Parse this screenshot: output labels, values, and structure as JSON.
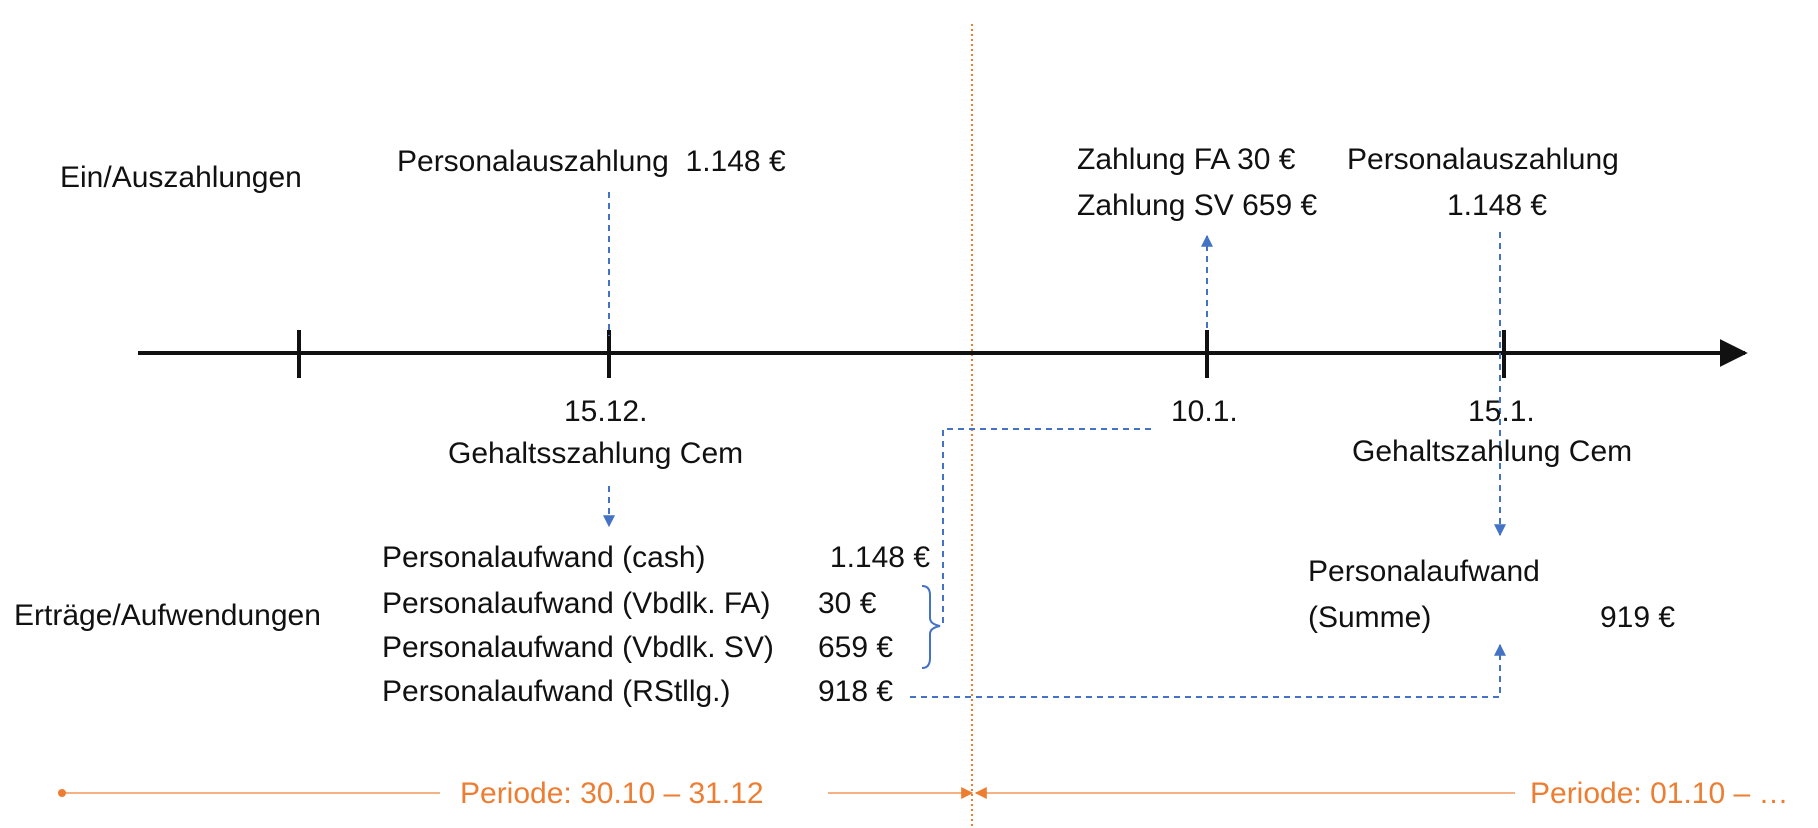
{
  "rows": {
    "top_label": "Ein/Auszahlungen",
    "bottom_label": "Erträge/Aufwendungen"
  },
  "top_events": {
    "payout_dec": "Personalauszahlung  1.148 €",
    "payment_fa": "Zahlung FA 30 €",
    "payment_sv": "Zahlung SV 659 €",
    "payout_jan_line1": "Personalauszahlung",
    "payout_jan_line2": "1.148 €"
  },
  "dates": {
    "d1": "15.12.",
    "d1_caption": "Gehaltsszahlung Cem",
    "d2": "10.1.",
    "d3": "15.1.",
    "d3_caption": "Gehaltszahlung Cem"
  },
  "expenses_dec": [
    {
      "label": "Personalaufwand (cash)",
      "value": "1.148 €"
    },
    {
      "label": "Personalaufwand (Vbdlk. FA)",
      "value": "30 €"
    },
    {
      "label": "Personalaufwand (Vbdlk. SV)",
      "value": "659 €"
    },
    {
      "label": "Personalaufwand (RStllg.)",
      "value": "918 €"
    }
  ],
  "expenses_jan": {
    "line1": "Personalaufwand",
    "line2": "(Summe)",
    "value": "919 €"
  },
  "periods": {
    "p1": "Periode: 30.10 – 31.12",
    "p2": "Periode: 01.10 – …"
  },
  "colors": {
    "timeline": "#111111",
    "arrow_blue": "#4472C4",
    "period_orange": "#ED7D31",
    "period_line": "#F4B183"
  }
}
